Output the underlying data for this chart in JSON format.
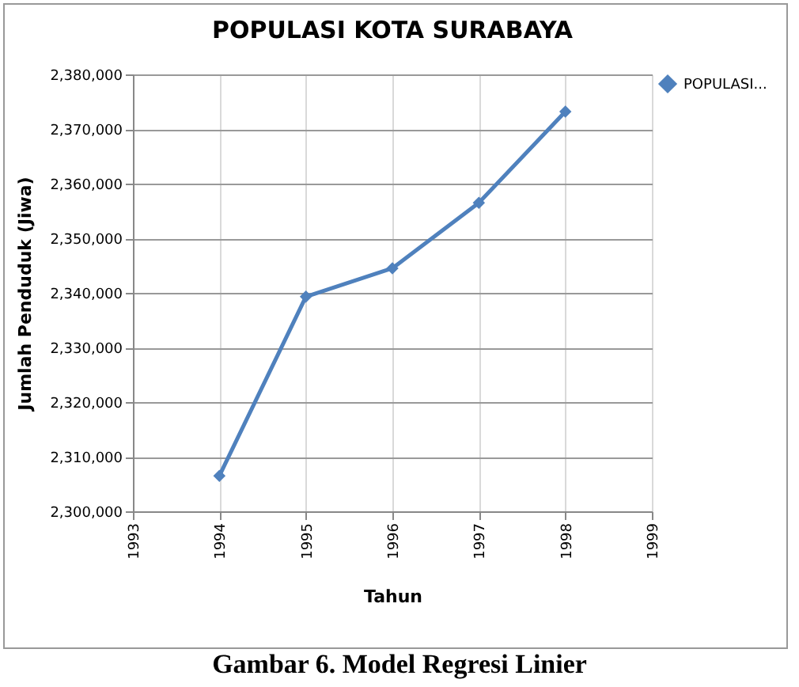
{
  "chart_data": {
    "type": "line",
    "title": "POPULASI KOTA SURABAYA",
    "xlabel": "Tahun",
    "ylabel": "Jumlah Penduduk (Jiwa)",
    "x": [
      1994,
      1995,
      1996,
      1997,
      1998
    ],
    "series": [
      {
        "name": "POPULASI...",
        "color": "#4f81bd",
        "values": [
          2306500,
          2339300,
          2344500,
          2356500,
          2373200
        ]
      }
    ],
    "xlim": [
      1993,
      1999
    ],
    "xticks": [
      1993,
      1994,
      1995,
      1996,
      1997,
      1998,
      1999
    ],
    "ylim": [
      2300000,
      2380000
    ],
    "yticks": [
      {
        "value": 2300000,
        "label": "2,300,000"
      },
      {
        "value": 2310000,
        "label": "2,310,000"
      },
      {
        "value": 2320000,
        "label": "2,320,000"
      },
      {
        "value": 2330000,
        "label": "2,330,000"
      },
      {
        "value": 2340000,
        "label": "2,340,000"
      },
      {
        "value": 2350000,
        "label": "2,350,000"
      },
      {
        "value": 2360000,
        "label": "2,360,000"
      },
      {
        "value": 2370000,
        "label": "2,370,000"
      },
      {
        "value": 2380000,
        "label": "2,380,000"
      }
    ],
    "grid": true,
    "legend": "right",
    "marker": "diamond",
    "line_style": "solid",
    "annotations": [
      "Gambar 6. Model Regresi Linier"
    ]
  }
}
